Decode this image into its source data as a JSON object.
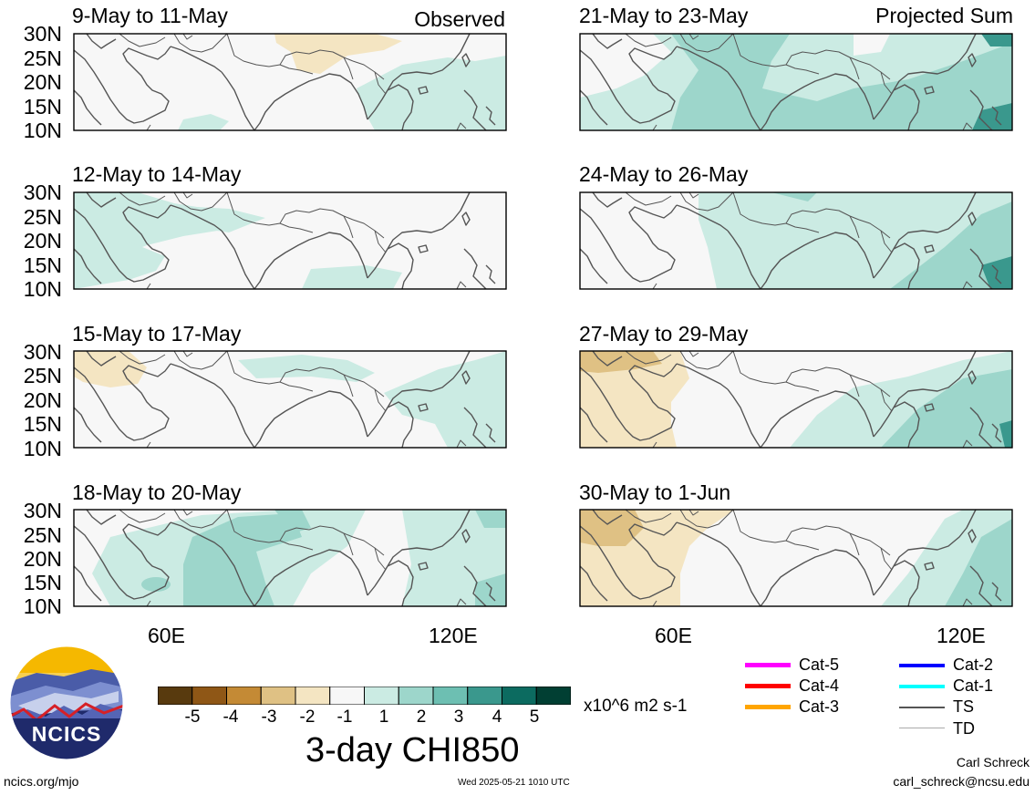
{
  "panels": [
    {
      "title": "9-May to 11-May",
      "tag": "Observed"
    },
    {
      "title": "12-May to 14-May",
      "tag": ""
    },
    {
      "title": "15-May to 17-May",
      "tag": ""
    },
    {
      "title": "18-May to 20-May",
      "tag": ""
    },
    {
      "title": "21-May to 23-May",
      "tag": "Projected Sum"
    },
    {
      "title": "24-May to 26-May",
      "tag": ""
    },
    {
      "title": "27-May to 29-May",
      "tag": ""
    },
    {
      "title": "30-May to 1-Jun",
      "tag": ""
    }
  ],
  "lat_labels": [
    "30N",
    "25N",
    "20N",
    "15N",
    "10N"
  ],
  "lon_labels": [
    "60E",
    "120E"
  ],
  "colorbar": {
    "colors": [
      "#583a0e",
      "#8f5716",
      "#c48a35",
      "#dfc184",
      "#f4e5c2",
      "#f7f7f7",
      "#cbebe3",
      "#9dd6cb",
      "#6dbfb2",
      "#3a988d",
      "#0c6b60",
      "#013f33"
    ],
    "labels": [
      "-5",
      "-4",
      "-3",
      "-2",
      "-1",
      "1",
      "2",
      "3",
      "4",
      "5"
    ],
    "units": "x10^6 m2 s-1",
    "title": "3-day CHI850"
  },
  "legend": [
    {
      "label": "Cat-5",
      "color": "#ff00ff"
    },
    {
      "label": "Cat-4",
      "color": "#ff0000"
    },
    {
      "label": "Cat-3",
      "color": "#ffa500"
    },
    {
      "label": "Cat-2",
      "color": "#0000ff"
    },
    {
      "label": "Cat-1",
      "color": "#00ffff"
    },
    {
      "label": "TS",
      "color": "#555555"
    },
    {
      "label": "TD",
      "color": "#aaaaaa"
    }
  ],
  "logo_text": "NCICS",
  "footer": {
    "left": "ncics.org/mjo",
    "center": "Wed 2025-05-21 1010 UTC",
    "author": "Carl Schreck",
    "email": "carl_schreck@ncsu.edu"
  }
}
